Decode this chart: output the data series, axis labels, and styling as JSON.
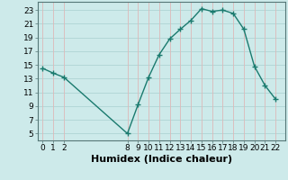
{
  "x": [
    0,
    1,
    2,
    8,
    9,
    10,
    11,
    12,
    13,
    14,
    15,
    16,
    17,
    18,
    19,
    20,
    21,
    22
  ],
  "y": [
    14.5,
    13.8,
    13.2,
    5.0,
    9.2,
    13.2,
    16.5,
    18.8,
    20.2,
    21.5,
    23.2,
    22.8,
    23.0,
    22.5,
    20.2,
    14.8,
    12.0,
    10.0
  ],
  "line_color": "#1a7a6e",
  "bg_color": "#cdeaea",
  "hgrid_color": "#aed4d4",
  "vgrid_color": "#ddb8b8",
  "xlabel": "Humidex (Indice chaleur)",
  "xlim": [
    -0.5,
    22.9
  ],
  "ylim": [
    4,
    24.2
  ],
  "yticks": [
    5,
    7,
    9,
    11,
    13,
    15,
    17,
    19,
    21,
    23
  ],
  "xticks": [
    0,
    1,
    2,
    8,
    9,
    10,
    11,
    12,
    13,
    14,
    15,
    16,
    17,
    18,
    19,
    20,
    21,
    22
  ],
  "xlabel_fontsize": 8,
  "tick_fontsize": 6.5,
  "marker_size": 4,
  "line_width": 1.0
}
